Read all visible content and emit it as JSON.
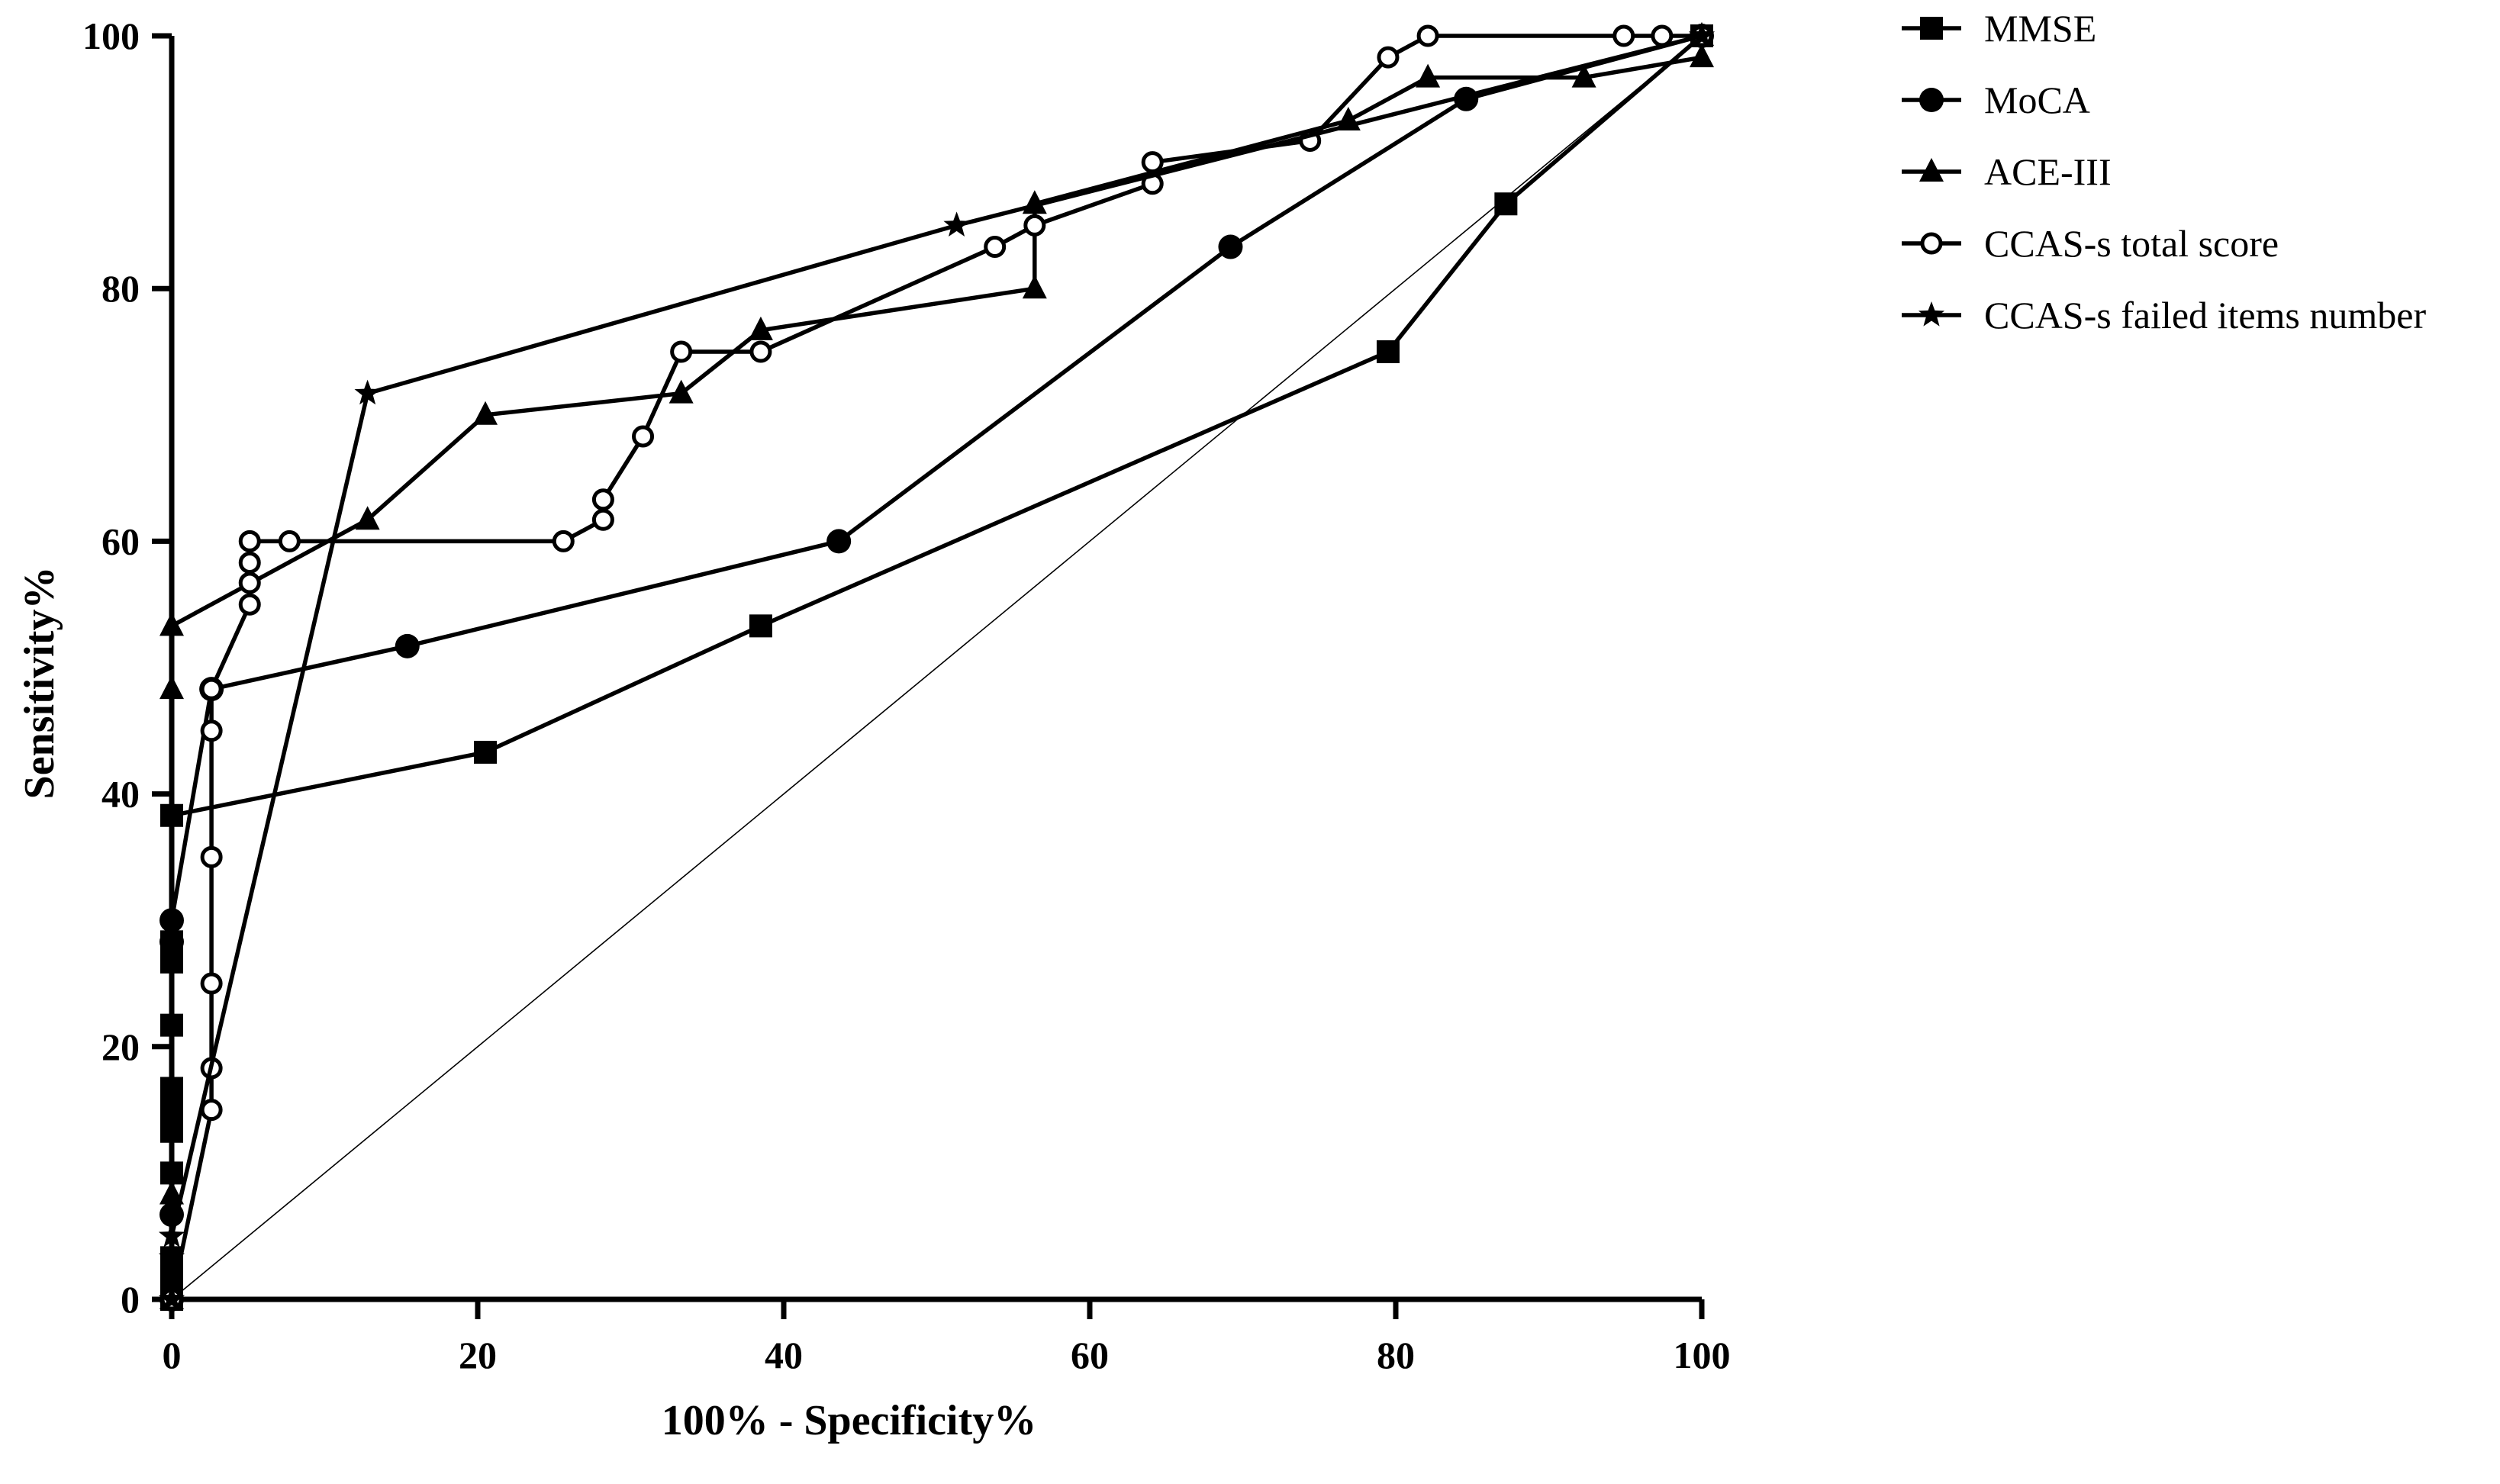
{
  "chart_data": {
    "type": "line",
    "title": "",
    "xlabel": "100% - Specificity%",
    "ylabel": "Sensitivity%",
    "xlim": [
      0,
      100
    ],
    "ylim": [
      0,
      100
    ],
    "xticks": [
      0,
      20,
      40,
      60,
      80,
      100
    ],
    "yticks": [
      0,
      20,
      40,
      60,
      80,
      100
    ],
    "legend_position": "top-right outside",
    "reference_line": {
      "name": "chance",
      "points": [
        [
          0,
          0
        ],
        [
          100,
          100
        ]
      ]
    },
    "series": [
      {
        "name": "MMSE",
        "marker": "square",
        "points": [
          [
            0,
            0
          ],
          [
            0,
            1.7
          ],
          [
            0,
            3.3
          ],
          [
            0,
            10
          ],
          [
            0,
            13.3
          ],
          [
            0,
            15
          ],
          [
            0,
            16.7
          ],
          [
            0,
            21.7
          ],
          [
            0,
            26.7
          ],
          [
            0,
            28.3
          ],
          [
            0,
            38.3
          ],
          [
            20.5,
            43.3
          ],
          [
            38.5,
            53.3
          ],
          [
            79.5,
            75
          ],
          [
            87.2,
            86.7
          ],
          [
            100,
            100
          ]
        ]
      },
      {
        "name": "MoCA",
        "marker": "circle",
        "points": [
          [
            0,
            0
          ],
          [
            0,
            6.7
          ],
          [
            0,
            28.3
          ],
          [
            0,
            30
          ],
          [
            2.6,
            48.3
          ],
          [
            15.4,
            51.7
          ],
          [
            43.6,
            60
          ],
          [
            69.2,
            83.3
          ],
          [
            84.6,
            95
          ],
          [
            100,
            100
          ]
        ]
      },
      {
        "name": "ACE-III",
        "marker": "triangle",
        "points": [
          [
            0,
            0
          ],
          [
            0,
            8.3
          ],
          [
            0,
            48.3
          ],
          [
            0,
            53.3
          ],
          [
            12.8,
            61.7
          ],
          [
            20.5,
            70
          ],
          [
            33.3,
            71.7
          ],
          [
            38.5,
            76.7
          ],
          [
            56.4,
            80
          ],
          [
            56.4,
            86.7
          ],
          [
            76.9,
            93.3
          ],
          [
            82.1,
            96.7
          ],
          [
            92.3,
            96.7
          ],
          [
            100,
            98.3
          ],
          [
            100,
            100
          ]
        ]
      },
      {
        "name": "CCAS-s total score",
        "marker": "open-circle",
        "points": [
          [
            0,
            0
          ],
          [
            2.6,
            15
          ],
          [
            2.6,
            18.3
          ],
          [
            2.6,
            25
          ],
          [
            2.6,
            35
          ],
          [
            2.6,
            45
          ],
          [
            2.6,
            48.3
          ],
          [
            5.1,
            55
          ],
          [
            5.1,
            56.7
          ],
          [
            5.1,
            58.3
          ],
          [
            5.1,
            60
          ],
          [
            7.7,
            60
          ],
          [
            25.6,
            60
          ],
          [
            28.2,
            61.7
          ],
          [
            28.2,
            63.3
          ],
          [
            30.8,
            68.3
          ],
          [
            33.3,
            75
          ],
          [
            38.5,
            75
          ],
          [
            53.8,
            83.3
          ],
          [
            56.4,
            85
          ],
          [
            64.1,
            88.3
          ],
          [
            64.1,
            90
          ],
          [
            74.4,
            91.7
          ],
          [
            79.5,
            98.3
          ],
          [
            82.1,
            100
          ],
          [
            94.9,
            100
          ],
          [
            97.4,
            100
          ],
          [
            100,
            100
          ]
        ]
      },
      {
        "name": "CCAS-s failed items number",
        "marker": "star",
        "points": [
          [
            0,
            0
          ],
          [
            0,
            3.3
          ],
          [
            0,
            5
          ],
          [
            12.8,
            71.7
          ],
          [
            51.3,
            85
          ],
          [
            100,
            100
          ]
        ]
      }
    ]
  }
}
